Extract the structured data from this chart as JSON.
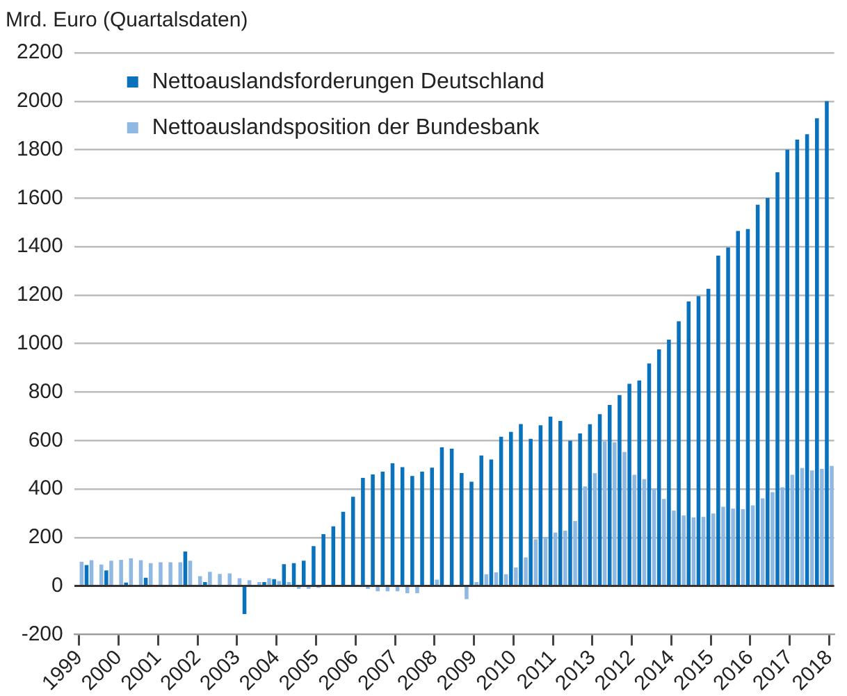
{
  "chart_data": {
    "type": "bar",
    "ylabel": "Mrd. Euro (Quartalsdaten)",
    "categories": [
      "1999",
      null,
      null,
      null,
      "2000",
      null,
      null,
      null,
      "2001",
      null,
      null,
      null,
      "2002",
      null,
      null,
      null,
      "2003",
      null,
      null,
      null,
      "2004",
      null,
      null,
      null,
      "2005",
      null,
      null,
      null,
      "2006",
      null,
      null,
      null,
      "2007",
      null,
      null,
      null,
      "2008",
      null,
      null,
      null,
      "2009",
      null,
      null,
      null,
      "2010",
      null,
      null,
      null,
      "2011",
      null,
      null,
      null,
      "2013",
      null,
      null,
      null,
      "2012",
      null,
      null,
      null,
      "2014",
      null,
      null,
      null,
      "2015",
      null,
      null,
      null,
      "2016",
      null,
      null,
      null,
      "2017",
      null,
      null,
      null,
      "2018"
    ],
    "series": [
      {
        "name": "Nettoauslandsforderungen Deutschland",
        "color": "#0a72bd",
        "values": [
          0,
          86,
          0,
          64,
          0,
          14,
          0,
          34,
          0,
          null,
          0,
          142,
          0,
          16,
          0,
          0,
          0,
          -116,
          0,
          16,
          28,
          90,
          94,
          104,
          164,
          214,
          246,
          306,
          368,
          446,
          460,
          472,
          506,
          490,
          454,
          472,
          488,
          572,
          566,
          466,
          430,
          538,
          522,
          616,
          636,
          668,
          607,
          663,
          699,
          681,
          599,
          629,
          667,
          709,
          747,
          788,
          834,
          848,
          918,
          976,
          1016,
          1092,
          1174,
          1196,
          1226,
          1363,
          1397,
          1465,
          1473,
          1573,
          1601,
          1707,
          1800,
          1842,
          1864,
          1930,
          2000
        ]
      },
      {
        "name": "Nettoauslandsposition der Bundesbank",
        "color": "#8fb8e2",
        "values": [
          100,
          106,
          88,
          104,
          108,
          114,
          106,
          94,
          98,
          98,
          98,
          104,
          40,
          58,
          50,
          52,
          32,
          24,
          16,
          32,
          20,
          16,
          -12,
          -12,
          -8,
          -4,
          null,
          null,
          null,
          -12,
          -22,
          -22,
          -22,
          -30,
          -30,
          0,
          26,
          0,
          0,
          -54,
          16,
          48,
          56,
          48,
          76,
          118,
          192,
          202,
          220,
          228,
          268,
          411,
          465,
          597,
          593,
          553,
          459,
          441,
          403,
          359,
          311,
          291,
          283,
          285,
          299,
          327,
          319,
          317,
          333,
          361,
          387,
          407,
          459,
          487,
          477,
          483,
          495
        ]
      }
    ],
    "ylim": [
      -200,
      2200
    ],
    "yticks": [
      -200,
      0,
      200,
      400,
      600,
      800,
      1000,
      1200,
      1400,
      1600,
      1800,
      2000,
      2200
    ],
    "grid": "y",
    "legend": "top left"
  }
}
